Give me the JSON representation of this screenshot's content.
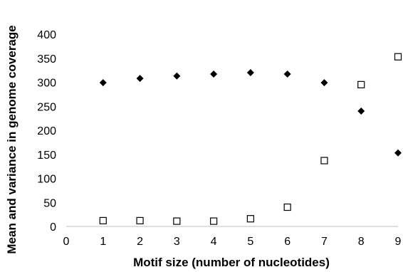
{
  "chart_data": {
    "type": "scatter",
    "title": "",
    "xlabel": "Motif size (number of nucleotides)",
    "ylabel": "Mean and variance in genome coverage",
    "xlim": [
      0,
      9
    ],
    "ylim": [
      0,
      400
    ],
    "xticks": [
      0,
      1,
      2,
      3,
      4,
      5,
      6,
      7,
      8,
      9
    ],
    "yticks": [
      0,
      50,
      100,
      150,
      200,
      250,
      300,
      350,
      400
    ],
    "grid": false,
    "legend": "none",
    "series": [
      {
        "marker": "filled-diamond",
        "color": "#000000",
        "x": [
          1,
          2,
          3,
          4,
          5,
          6,
          7,
          8,
          9
        ],
        "y": [
          299,
          308,
          313,
          317,
          320,
          317,
          299,
          240,
          153
        ]
      },
      {
        "marker": "open-square",
        "color": "#000000",
        "x": [
          1,
          2,
          3,
          4,
          5,
          6,
          7,
          8,
          9
        ],
        "y": [
          12,
          12,
          11,
          11,
          16,
          40,
          137,
          295,
          353
        ]
      }
    ]
  }
}
